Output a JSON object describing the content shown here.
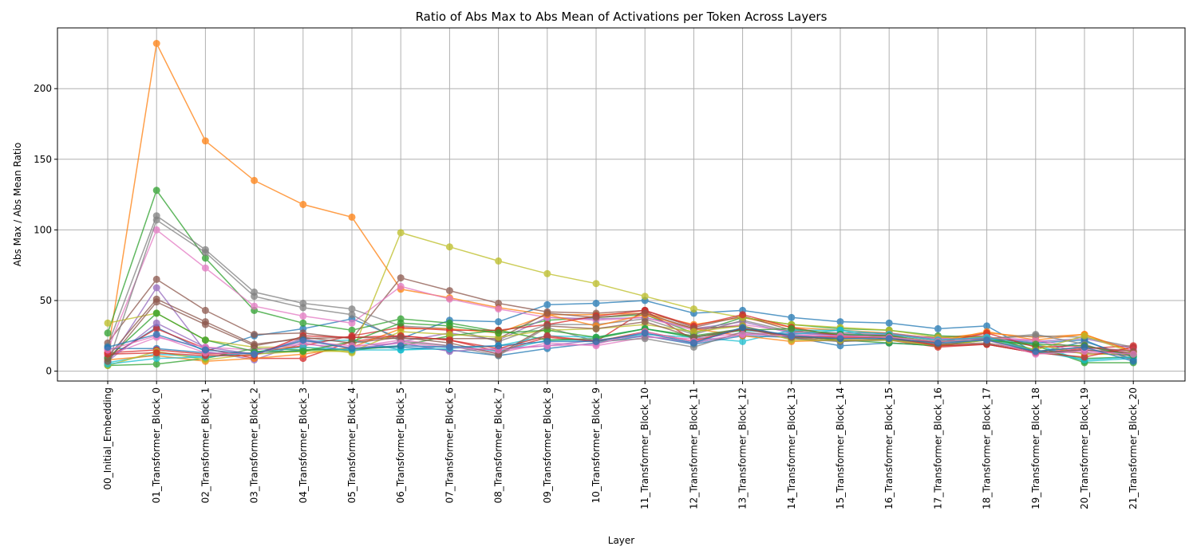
{
  "chart_data": {
    "type": "line",
    "title": "Ratio of Abs Max to Abs Mean of Activations per Token Across Layers",
    "xlabel": "Layer",
    "ylabel": "Abs Max / Abs Mean Ratio",
    "ylim": [
      -7,
      243
    ],
    "yticks": [
      0,
      50,
      100,
      150,
      200
    ],
    "grid": true,
    "legend": "none",
    "categories": [
      "00_Initial_Embedding",
      "01_Transformer_Block_0",
      "02_Transformer_Block_1",
      "03_Transformer_Block_2",
      "04_Transformer_Block_3",
      "05_Transformer_Block_4",
      "06_Transformer_Block_5",
      "07_Transformer_Block_6",
      "08_Transformer_Block_7",
      "09_Transformer_Block_8",
      "10_Transformer_Block_9",
      "11_Transformer_Block_10",
      "12_Transformer_Block_11",
      "13_Transformer_Block_12",
      "14_Transformer_Block_13",
      "15_Transformer_Block_14",
      "16_Transformer_Block_15",
      "17_Transformer_Block_16",
      "18_Transformer_Block_17",
      "19_Transformer_Block_18",
      "20_Transformer_Block_19",
      "21_Transformer_Block_20"
    ],
    "series": [
      {
        "color": "#1f77b4",
        "values": [
          9,
          31,
          14,
          25,
          30,
          37,
          23,
          36,
          35,
          47,
          48,
          50,
          41,
          43,
          38,
          35,
          34,
          30,
          32,
          13,
          21,
          10
        ]
      },
      {
        "color": "#ff7f0e",
        "values": [
          13,
          232,
          163,
          135,
          118,
          109,
          58,
          52,
          45,
          40,
          40,
          41,
          33,
          38,
          31,
          29,
          27,
          23,
          27,
          24,
          26,
          14
        ]
      },
      {
        "color": "#2ca02c",
        "values": [
          27,
          128,
          80,
          43,
          34,
          29,
          37,
          34,
          28,
          36,
          38,
          40,
          27,
          38,
          33,
          30,
          29,
          25,
          24,
          15,
          9,
          10
        ]
      },
      {
        "color": "#d62728",
        "values": [
          10,
          30,
          16,
          9,
          9,
          21,
          25,
          22,
          14,
          24,
          21,
          43,
          22,
          30,
          25,
          22,
          22,
          17,
          19,
          13,
          16,
          18
        ]
      },
      {
        "color": "#9467bd",
        "values": [
          6,
          59,
          14,
          8,
          20,
          14,
          21,
          27,
          22,
          38,
          37,
          38,
          30,
          35,
          27,
          26,
          26,
          23,
          23,
          21,
          23,
          16
        ]
      },
      {
        "color": "#8c564b",
        "values": [
          20,
          65,
          43,
          26,
          27,
          23,
          66,
          57,
          48,
          42,
          41,
          43,
          31,
          39,
          29,
          25,
          25,
          24,
          25,
          14,
          13,
          11
        ]
      },
      {
        "color": "#e377c2",
        "values": [
          15,
          100,
          73,
          46,
          39,
          34,
          60,
          51,
          44,
          38,
          36,
          38,
          29,
          33,
          28,
          27,
          27,
          23,
          23,
          22,
          12,
          15
        ]
      },
      {
        "color": "#7f7f7f",
        "values": [
          18,
          110,
          86,
          56,
          48,
          44,
          32,
          30,
          21,
          33,
          33,
          37,
          26,
          36,
          28,
          27,
          27,
          22,
          23,
          25,
          24,
          17
        ]
      },
      {
        "color": "#bcbd22",
        "values": [
          34,
          41,
          22,
          17,
          17,
          13,
          98,
          88,
          78,
          69,
          62,
          53,
          44,
          38,
          33,
          31,
          29,
          24,
          24,
          19,
          12,
          12
        ]
      },
      {
        "color": "#17becf",
        "values": [
          6,
          12,
          10,
          13,
          21,
          22,
          15,
          18,
          14,
          22,
          22,
          26,
          24,
          21,
          29,
          29,
          22,
          21,
          22,
          19,
          7,
          9
        ]
      },
      {
        "color": "#1f77b4",
        "values": [
          16,
          16,
          13,
          12,
          15,
          16,
          17,
          15,
          11,
          16,
          20,
          25,
          19,
          25,
          24,
          18,
          20,
          18,
          23,
          20,
          22,
          8
        ]
      },
      {
        "color": "#ff7f0e",
        "values": [
          8,
          11,
          7,
          9,
          12,
          17,
          30,
          30,
          27,
          40,
          32,
          40,
          30,
          25,
          21,
          22,
          22,
          21,
          28,
          22,
          26,
          14
        ]
      },
      {
        "color": "#2ca02c",
        "values": [
          4,
          5,
          9,
          16,
          15,
          15,
          18,
          25,
          29,
          22,
          23,
          30,
          25,
          30,
          25,
          22,
          20,
          18,
          22,
          18,
          6,
          6
        ]
      },
      {
        "color": "#d62728",
        "values": [
          13,
          15,
          12,
          13,
          18,
          25,
          31,
          29,
          29,
          33,
          39,
          43,
          32,
          40,
          31,
          25,
          25,
          20,
          27,
          17,
          18,
          12
        ]
      },
      {
        "color": "#9467bd",
        "values": [
          7,
          34,
          17,
          12,
          23,
          16,
          20,
          14,
          16,
          18,
          22,
          25,
          20,
          26,
          27,
          25,
          26,
          22,
          23,
          13,
          15,
          12
        ]
      },
      {
        "color": "#8c564b",
        "values": [
          10,
          51,
          35,
          19,
          23,
          24,
          23,
          23,
          23,
          41,
          38,
          41,
          30,
          32,
          24,
          21,
          23,
          18,
          19,
          13,
          15,
          13
        ]
      },
      {
        "color": "#e377c2",
        "values": [
          11,
          24,
          17,
          15,
          19,
          17,
          22,
          18,
          13,
          20,
          18,
          24,
          23,
          27,
          26,
          24,
          26,
          22,
          24,
          22,
          16,
          15
        ]
      },
      {
        "color": "#7f7f7f",
        "values": [
          5,
          107,
          84,
          53,
          45,
          40,
          21,
          18,
          11,
          31,
          21,
          23,
          17,
          28,
          23,
          21,
          22,
          19,
          23,
          26,
          19,
          8
        ]
      },
      {
        "color": "#bcbd22",
        "values": [
          4,
          14,
          8,
          12,
          14,
          14,
          28,
          26,
          24,
          29,
          30,
          33,
          28,
          32,
          22,
          22,
          22,
          18,
          22,
          15,
          25,
          13
        ]
      },
      {
        "color": "#17becf",
        "values": [
          5,
          9,
          10,
          13,
          17,
          15,
          15,
          16,
          18,
          25,
          24,
          30,
          24,
          29,
          26,
          29,
          26,
          22,
          24,
          14,
          8,
          10
        ]
      },
      {
        "color": "#2ca02c",
        "values": [
          9,
          41,
          22,
          14,
          14,
          21,
          34,
          32,
          27,
          29,
          24,
          30,
          24,
          29,
          30,
          26,
          25,
          21,
          22,
          19,
          18,
          11
        ]
      },
      {
        "color": "#d62728",
        "values": [
          12,
          13,
          11,
          11,
          25,
          24,
          25,
          22,
          16,
          25,
          21,
          28,
          21,
          30,
          25,
          24,
          24,
          18,
          19,
          13,
          10,
          17
        ]
      },
      {
        "color": "#8c564b",
        "values": [
          7,
          49,
          33,
          18,
          24,
          20,
          24,
          20,
          12,
          32,
          30,
          35,
          24,
          30,
          24,
          23,
          24,
          19,
          20,
          14,
          17,
          14
        ]
      },
      {
        "color": "#e377c2",
        "values": [
          15,
          25,
          13,
          12,
          21,
          18,
          20,
          17,
          15,
          18,
          19,
          28,
          21,
          26,
          25,
          25,
          24,
          21,
          22,
          12,
          14,
          12
        ]
      },
      {
        "color": "#1f77b4",
        "values": [
          17,
          26,
          15,
          12,
          22,
          16,
          18,
          17,
          18,
          21,
          21,
          27,
          20,
          31,
          25,
          23,
          23,
          20,
          22,
          14,
          17,
          7
        ]
      }
    ]
  }
}
